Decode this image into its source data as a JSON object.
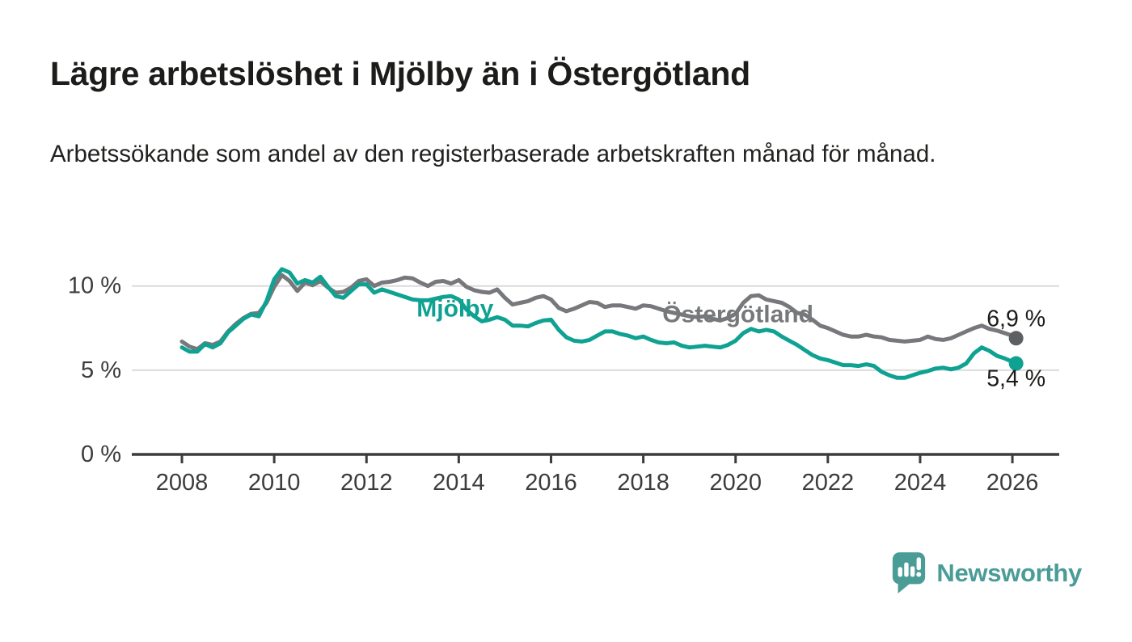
{
  "page": {
    "title": "Lägre arbetslöshet i Mjölby än i Östergötland",
    "subtitle": "Arbetssökande som andel av den registerbaserade arbetskraften månad för månad."
  },
  "branding": {
    "logo_text": "Newsworthy",
    "logo_color": "#4A9C97",
    "logo_icon": "bar-chart-speech-bubble-icon"
  },
  "chart_data": {
    "type": "line",
    "title": "Lägre arbetslöshet i Mjölby än i Östergötland",
    "unit": "%",
    "grid": "horizontal",
    "legend_position": "inline-labels",
    "colors": {
      "axis": "#3C3C3C",
      "axis_text": "#3C3C3C",
      "gridline": "#DBDBDB",
      "end_label_text": "#1B1B19",
      "mjolby": "#0FA292",
      "ostergotland": "#77787B",
      "ostergotland_dot": "#5E5F62"
    },
    "x_axis": {
      "ticks": [
        2008,
        2010,
        2012,
        2014,
        2016,
        2018,
        2020,
        2022,
        2024,
        2026
      ],
      "range": [
        2006.9,
        2027.0
      ]
    },
    "y_axis": {
      "ticks": [
        {
          "value": 0,
          "label": "0 %"
        },
        {
          "value": 5,
          "label": "5 %"
        },
        {
          "value": 10,
          "label": "10 %"
        }
      ],
      "range": [
        0,
        11.6
      ]
    },
    "series": [
      {
        "name": "Östergötland",
        "color": "#77787B",
        "dot_color": "#5E5F62",
        "end_label": "6,9 %",
        "end_value": 6.9,
        "end_label_dy": -15,
        "label_anchor": {
          "x": 2020.05,
          "y": 8.3
        },
        "x_start": 2008.0,
        "x_step": 0.16667,
        "values": [
          6.7,
          6.4,
          6.25,
          6.6,
          6.5,
          6.7,
          7.3,
          7.75,
          8.1,
          8.35,
          8.4,
          9.0,
          9.95,
          10.65,
          10.3,
          9.7,
          10.2,
          10.05,
          10.3,
          9.9,
          9.6,
          9.65,
          9.9,
          10.3,
          10.4,
          10.0,
          10.2,
          10.25,
          10.35,
          10.5,
          10.45,
          10.2,
          10.0,
          10.25,
          10.3,
          10.15,
          10.35,
          9.95,
          9.75,
          9.65,
          9.6,
          9.8,
          9.3,
          8.9,
          9.0,
          9.1,
          9.3,
          9.4,
          9.2,
          8.7,
          8.5,
          8.65,
          8.85,
          9.05,
          9.0,
          8.75,
          8.85,
          8.85,
          8.75,
          8.65,
          8.85,
          8.8,
          8.65,
          8.5,
          8.4,
          8.3,
          8.2,
          8.15,
          8.2,
          8.05,
          7.95,
          8.1,
          8.35,
          9.0,
          9.4,
          9.45,
          9.2,
          9.1,
          9.0,
          8.75,
          8.4,
          8.3,
          8.0,
          7.65,
          7.5,
          7.3,
          7.1,
          7.0,
          7.0,
          7.1,
          7.0,
          6.95,
          6.8,
          6.75,
          6.7,
          6.75,
          6.8,
          7.0,
          6.85,
          6.8,
          6.9,
          7.1,
          7.3,
          7.5,
          7.65,
          7.45,
          7.35,
          7.2,
          7.05
        ],
        "last_point": [
          2026.08,
          6.9
        ]
      },
      {
        "name": "Mjölby",
        "color": "#0FA292",
        "dot_color": "#0FA292",
        "end_label": "5,4 %",
        "end_value": 5.4,
        "end_label_dy": 28,
        "label_anchor": {
          "x": 2013.92,
          "y": 8.64
        },
        "x_start": 2008.0,
        "x_step": 0.16667,
        "values": [
          6.35,
          6.1,
          6.1,
          6.55,
          6.35,
          6.6,
          7.25,
          7.65,
          8.05,
          8.3,
          8.2,
          9.1,
          10.4,
          11.0,
          10.8,
          10.15,
          10.35,
          10.2,
          10.55,
          9.95,
          9.4,
          9.3,
          9.7,
          10.1,
          10.1,
          9.6,
          9.8,
          9.65,
          9.5,
          9.35,
          9.2,
          9.15,
          9.15,
          9.25,
          9.35,
          9.4,
          9.2,
          8.6,
          8.2,
          7.9,
          8.0,
          8.15,
          8.0,
          7.65,
          7.65,
          7.6,
          7.8,
          7.95,
          8.0,
          7.4,
          6.95,
          6.75,
          6.7,
          6.8,
          7.05,
          7.3,
          7.3,
          7.15,
          7.05,
          6.9,
          7.0,
          6.8,
          6.65,
          6.6,
          6.65,
          6.45,
          6.35,
          6.4,
          6.45,
          6.4,
          6.35,
          6.5,
          6.75,
          7.2,
          7.45,
          7.3,
          7.4,
          7.3,
          7.0,
          6.75,
          6.5,
          6.2,
          5.9,
          5.7,
          5.6,
          5.45,
          5.3,
          5.3,
          5.25,
          5.35,
          5.25,
          4.9,
          4.7,
          4.55,
          4.55,
          4.7,
          4.85,
          4.95,
          5.1,
          5.15,
          5.05,
          5.15,
          5.4,
          6.0,
          6.35,
          6.15,
          5.85,
          5.7,
          5.5
        ],
        "last_point": [
          2026.08,
          5.4
        ]
      }
    ]
  }
}
